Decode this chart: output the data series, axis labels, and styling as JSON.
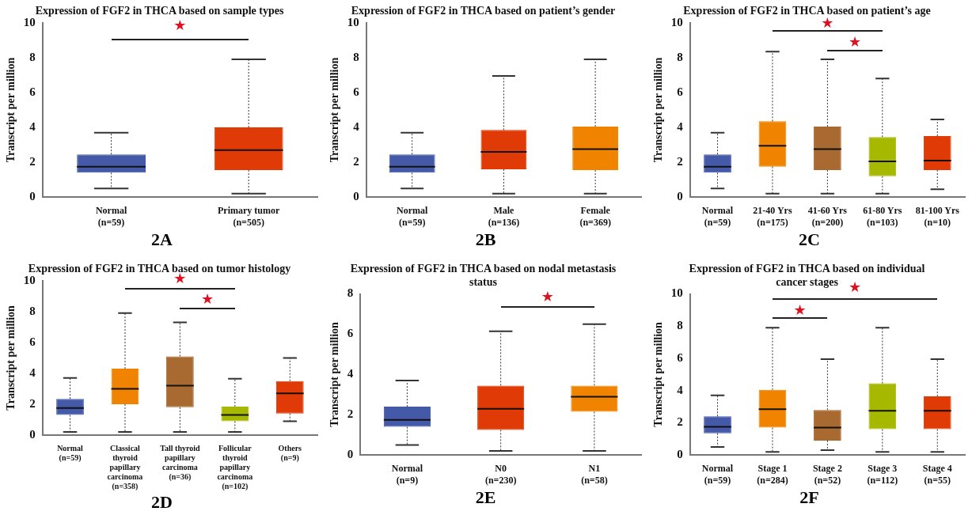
{
  "chart_data": [
    {
      "type": "box",
      "title": "Expression of FGF2 in THCA based on sample types",
      "ylabel": "Transcript per million",
      "categories": [
        "Normal (n=59)",
        "Primary tumor (n=505)"
      ],
      "colors": [
        "#4459a8",
        "#e03a06"
      ],
      "boxes": [
        {
          "low": 0.5,
          "q1": 1.4,
          "median": 1.75,
          "q3": 2.45,
          "high": 3.7
        },
        {
          "low": 0.2,
          "q1": 1.55,
          "median": 2.7,
          "q3": 4.0,
          "high": 7.9
        }
      ],
      "ylim": [
        0,
        10
      ],
      "yticks": [
        0,
        2,
        4,
        6,
        8,
        10
      ],
      "grid": false,
      "annotations": [
        "★",
        "2A"
      ]
    },
    {
      "type": "box",
      "title": "Expression of FGF2 in THCA based on patient’s gender",
      "ylabel": "Transcript per million",
      "categories": [
        "Normal (n=59)",
        "Male (n=136)",
        "Female (n=369)"
      ],
      "colors": [
        "#4459a8",
        "#e03a06",
        "#f08300"
      ],
      "boxes": [
        {
          "low": 0.5,
          "q1": 1.4,
          "median": 1.75,
          "q3": 2.45,
          "high": 3.7
        },
        {
          "low": 0.2,
          "q1": 1.6,
          "median": 2.6,
          "q3": 3.85,
          "high": 6.95
        },
        {
          "low": 0.2,
          "q1": 1.55,
          "median": 2.75,
          "q3": 4.05,
          "high": 7.9
        }
      ],
      "ylim": [
        0,
        10
      ],
      "yticks": [
        0,
        2,
        4,
        6,
        8,
        10
      ],
      "grid": false,
      "annotations": [
        "2B"
      ]
    },
    {
      "type": "box",
      "title": "Expression of FGF2 in THCA based on patient’s age",
      "ylabel": "Transcript per million",
      "categories": [
        "Normal (n=59)",
        "21-40 Yrs (n=175)",
        "41-60 Yrs (n=200)",
        "61-80 Yrs (n=103)",
        "81-100 Yrs (n=10)"
      ],
      "colors": [
        "#4459a8",
        "#f08300",
        "#a86a30",
        "#a6b900",
        "#e03a06"
      ],
      "boxes": [
        {
          "low": 0.5,
          "q1": 1.4,
          "median": 1.75,
          "q3": 2.45,
          "high": 3.7
        },
        {
          "low": 0.2,
          "q1": 1.75,
          "median": 2.95,
          "q3": 4.35,
          "high": 8.35
        },
        {
          "low": 0.2,
          "q1": 1.55,
          "median": 2.75,
          "q3": 4.05,
          "high": 7.9
        },
        {
          "low": 0.2,
          "q1": 1.2,
          "median": 2.05,
          "q3": 3.45,
          "high": 6.8
        },
        {
          "low": 0.45,
          "q1": 1.55,
          "median": 2.1,
          "q3": 3.5,
          "high": 4.45
        }
      ],
      "ylim": [
        0,
        10
      ],
      "yticks": [
        0,
        2,
        4,
        6,
        8,
        10
      ],
      "grid": false,
      "annotations": [
        "★",
        "★",
        "2C"
      ]
    },
    {
      "type": "box",
      "title": "Expression of FGF2 in THCA based on tumor histology",
      "ylabel": "Transcript per million",
      "categories": [
        "Normal (n=59)",
        "Classical thyroid papillary carcinoma (n=358)",
        "Tall thyroid papillary carcinoma (n=36)",
        "Follicular thyroid papillary carcinoma (n=102)",
        "Others (n=9)"
      ],
      "colors": [
        "#4459a8",
        "#f08300",
        "#a86a30",
        "#a6b900",
        "#e03a06"
      ],
      "boxes": [
        {
          "low": 0.2,
          "q1": 1.3,
          "median": 1.75,
          "q3": 2.35,
          "high": 3.7
        },
        {
          "low": 0.2,
          "q1": 2.0,
          "median": 3.0,
          "q3": 4.3,
          "high": 7.9
        },
        {
          "low": 0.2,
          "q1": 1.8,
          "median": 3.2,
          "q3": 5.1,
          "high": 7.3
        },
        {
          "low": 0.2,
          "q1": 0.9,
          "median": 1.3,
          "q3": 1.85,
          "high": 3.65
        },
        {
          "low": 0.9,
          "q1": 1.4,
          "median": 2.7,
          "q3": 3.5,
          "high": 5.0
        }
      ],
      "ylim": [
        0,
        10
      ],
      "yticks": [
        0,
        2,
        4,
        6,
        8,
        10
      ],
      "grid": false,
      "annotations": [
        "★",
        "★",
        "2D"
      ]
    },
    {
      "type": "box",
      "title": "Expression of FGF2 in THCA based on nodal metastasis status",
      "ylabel": "Transcript per million",
      "categories": [
        "Normal (n=9)",
        "N0 (n=230)",
        "N1 (n=58)"
      ],
      "colors": [
        "#4459a8",
        "#e03a06",
        "#f08300"
      ],
      "boxes": [
        {
          "low": 0.5,
          "q1": 1.4,
          "median": 1.75,
          "q3": 2.4,
          "high": 3.7
        },
        {
          "low": 0.2,
          "q1": 1.25,
          "median": 2.3,
          "q3": 3.45,
          "high": 6.15
        },
        {
          "low": 0.2,
          "q1": 2.15,
          "median": 2.9,
          "q3": 3.45,
          "high": 6.5
        }
      ],
      "ylim": [
        0,
        8
      ],
      "yticks": [
        0,
        2,
        4,
        6,
        8
      ],
      "grid": false,
      "annotations": [
        "★",
        "2E"
      ]
    },
    {
      "type": "box",
      "title": "Expression of FGF2 in THCA based on individual cancer stages",
      "ylabel": "Transcript per million",
      "categories": [
        "Normal (n=59)",
        "Stage 1 (n=284)",
        "Stage 2 (n=52)",
        "Stage 3 (n=112)",
        "Stage 4 (n=55)"
      ],
      "colors": [
        "#4459a8",
        "#f08300",
        "#a86a30",
        "#a6b900",
        "#e03a06"
      ],
      "boxes": [
        {
          "low": 0.5,
          "q1": 1.35,
          "median": 1.75,
          "q3": 2.4,
          "high": 3.7
        },
        {
          "low": 0.2,
          "q1": 1.7,
          "median": 2.85,
          "q3": 4.05,
          "high": 7.9
        },
        {
          "low": 0.3,
          "q1": 0.9,
          "median": 1.7,
          "q3": 2.8,
          "high": 5.95
        },
        {
          "low": 0.2,
          "q1": 1.6,
          "median": 2.75,
          "q3": 4.45,
          "high": 7.9
        },
        {
          "low": 0.2,
          "q1": 1.6,
          "median": 2.75,
          "q3": 3.65,
          "high": 5.95
        }
      ],
      "ylim": [
        0,
        10
      ],
      "yticks": [
        0,
        2,
        4,
        6,
        8,
        10
      ],
      "grid": false,
      "annotations": [
        "★",
        "★",
        "2F"
      ]
    }
  ]
}
